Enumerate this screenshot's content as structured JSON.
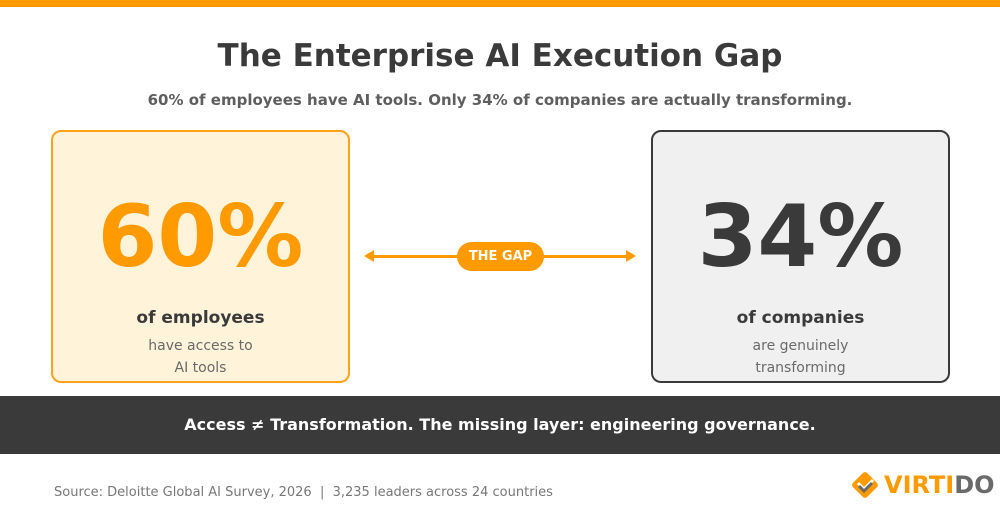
{
  "header": {
    "title": "The Enterprise AI Execution Gap",
    "subtitle": "60% of employees have AI tools. Only 34% of companies are actually transforming."
  },
  "left_card": {
    "value": "60%",
    "label": "of employees",
    "desc_line1": "have access to",
    "desc_line2": "AI tools"
  },
  "right_card": {
    "value": "34%",
    "label": "of companies",
    "desc_line1": "are genuinely",
    "desc_line2": "transforming"
  },
  "gap": {
    "label": "THE GAP"
  },
  "band": {
    "text": "Access ≠ Transformation. The missing layer: engineering governance."
  },
  "footer": {
    "source": "Source: Deloitte Global AI Survey, 2026  |  3,235 leaders across 24 countries",
    "logo_a": "VIRTI",
    "logo_b": "DO"
  },
  "colors": {
    "accent": "#ff9a00",
    "dark": "#3a3a3a",
    "light_orange": "#fff3da",
    "light_gray": "#f0f0f0"
  }
}
